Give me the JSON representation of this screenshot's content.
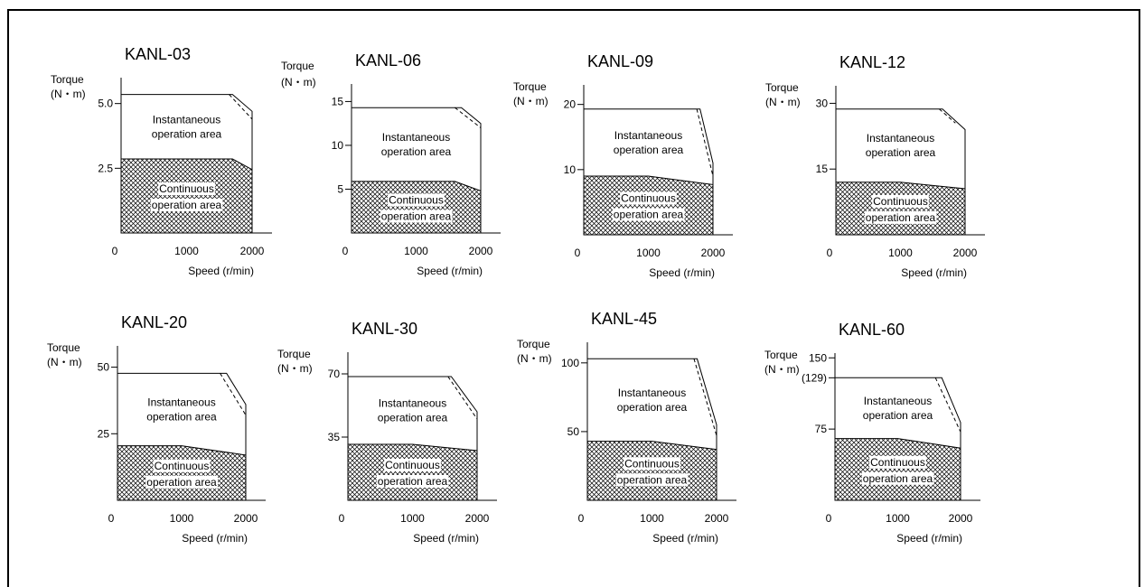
{
  "chart_data": [
    {
      "type": "area",
      "title": "KANL-03",
      "ylabel": "Torque",
      "yunit": "(N・m)",
      "xlabel": "Speed (r/min)",
      "x_ticks": [
        0,
        1000,
        2000
      ],
      "y_ticks": [
        {
          "v": 2.5,
          "label": "2.5"
        },
        {
          "v": 5.0,
          "label": "5.0"
        }
      ],
      "ylim": [
        0,
        6
      ],
      "xlim": [
        0,
        2000
      ],
      "instantaneous": {
        "label": "Instantaneous operation area",
        "boundary": [
          [
            0,
            5.35
          ],
          [
            1700,
            5.35
          ],
          [
            2000,
            4.7
          ],
          [
            2000,
            2.45
          ]
        ]
      },
      "instantaneous_dashed": [
        [
          1650,
          5.35
        ],
        [
          2000,
          4.4
        ]
      ],
      "continuous": {
        "label": "Continuous operation area",
        "boundary": [
          [
            0,
            2.86
          ],
          [
            1700,
            2.86
          ],
          [
            2000,
            2.45
          ],
          [
            2000,
            0
          ]
        ]
      }
    },
    {
      "type": "area",
      "title": "KANL-06",
      "ylabel": "Torque",
      "yunit": "(N・m)",
      "xlabel": "Speed (r/min)",
      "x_ticks": [
        0,
        1000,
        2000
      ],
      "y_ticks": [
        {
          "v": 5,
          "label": "5"
        },
        {
          "v": 10,
          "label": "10"
        },
        {
          "v": 15,
          "label": "15"
        }
      ],
      "ylim": [
        0,
        17
      ],
      "xlim": [
        0,
        2000
      ],
      "instantaneous": {
        "label": "Instantaneous operation area",
        "boundary": [
          [
            0,
            14.3
          ],
          [
            1700,
            14.3
          ],
          [
            2000,
            12.5
          ],
          [
            2000,
            4.8
          ]
        ]
      },
      "instantaneous_dashed": [
        [
          1600,
          14.3
        ],
        [
          2000,
          12.0
        ]
      ],
      "continuous": {
        "label": "Continuous operation area",
        "boundary": [
          [
            0,
            5.88
          ],
          [
            1600,
            5.88
          ],
          [
            2000,
            4.8
          ],
          [
            2000,
            0
          ]
        ]
      }
    },
    {
      "type": "area",
      "title": "KANL-09",
      "ylabel": "Torque",
      "yunit": "(N・m)",
      "xlabel": "Speed (r/min)",
      "x_ticks": [
        0,
        1000,
        2000
      ],
      "y_ticks": [
        {
          "v": 10,
          "label": "10"
        },
        {
          "v": 20,
          "label": "20"
        }
      ],
      "ylim": [
        0,
        23
      ],
      "xlim": [
        0,
        2000
      ],
      "instantaneous": {
        "label": "Instantaneous operation area",
        "boundary": [
          [
            0,
            19.3
          ],
          [
            1800,
            19.3
          ],
          [
            2000,
            11.0
          ],
          [
            2000,
            7.7
          ]
        ]
      },
      "instantaneous_dashed": [
        [
          1750,
          19.3
        ],
        [
          2000,
          9.0
        ]
      ],
      "continuous": {
        "label": "Continuous operation area",
        "boundary": [
          [
            0,
            9.0
          ],
          [
            1000,
            9.0
          ],
          [
            2000,
            7.7
          ],
          [
            2000,
            0
          ]
        ]
      }
    },
    {
      "type": "area",
      "title": "KANL-12",
      "ylabel": "Torque",
      "yunit": "(N・m)",
      "xlabel": "Speed (r/min)",
      "x_ticks": [
        0,
        1000,
        2000
      ],
      "y_ticks": [
        {
          "v": 15,
          "label": "15"
        },
        {
          "v": 30,
          "label": "30"
        }
      ],
      "ylim": [
        0,
        34
      ],
      "xlim": [
        0,
        2000
      ],
      "instantaneous": {
        "label": "Instantaneous operation area",
        "boundary": [
          [
            0,
            28.7
          ],
          [
            1650,
            28.7
          ],
          [
            2000,
            24.0
          ],
          [
            2000,
            10.5
          ]
        ]
      },
      "instantaneous_dashed": [
        [
          1600,
          28.7
        ],
        [
          1850,
          25.5
        ]
      ],
      "continuous": {
        "label": "Continuous operation area",
        "boundary": [
          [
            0,
            12.0
          ],
          [
            1000,
            12.0
          ],
          [
            2000,
            10.5
          ],
          [
            2000,
            0
          ]
        ]
      }
    },
    {
      "type": "area",
      "title": "KANL-20",
      "ylabel": "Torque",
      "yunit": "(N・m)",
      "xlabel": "Speed (r/min)",
      "x_ticks": [
        0,
        1000,
        2000
      ],
      "y_ticks": [
        {
          "v": 25,
          "label": "25"
        },
        {
          "v": 50,
          "label": "50"
        }
      ],
      "ylim": [
        0,
        58
      ],
      "xlim": [
        0,
        2000
      ],
      "instantaneous": {
        "label": "Instantaneous operation area",
        "boundary": [
          [
            0,
            47.7
          ],
          [
            1700,
            47.7
          ],
          [
            2000,
            36.0
          ],
          [
            2000,
            17.0
          ]
        ]
      },
      "instantaneous_dashed": [
        [
          1600,
          47.7
        ],
        [
          2000,
          32.0
        ]
      ],
      "continuous": {
        "label": "Continuous operation area",
        "boundary": [
          [
            0,
            20.5
          ],
          [
            1000,
            20.5
          ],
          [
            2000,
            17.0
          ],
          [
            2000,
            0
          ]
        ]
      }
    },
    {
      "type": "area",
      "title": "KANL-30",
      "ylabel": "Torque",
      "yunit": "(N・m)",
      "xlabel": "Speed (r/min)",
      "x_ticks": [
        0,
        1000,
        2000
      ],
      "y_ticks": [
        {
          "v": 35,
          "label": "35"
        },
        {
          "v": 70,
          "label": "70"
        }
      ],
      "ylim": [
        0,
        82
      ],
      "xlim": [
        0,
        2000
      ],
      "instantaneous": {
        "label": "Instantaneous operation area",
        "boundary": [
          [
            0,
            68.5
          ],
          [
            1600,
            68.5
          ],
          [
            2000,
            49.0
          ],
          [
            2000,
            27.5
          ]
        ]
      },
      "instantaneous_dashed": [
        [
          1550,
          68.5
        ],
        [
          2000,
          45.0
        ]
      ],
      "continuous": {
        "label": "Continuous operation area",
        "boundary": [
          [
            0,
            31.0
          ],
          [
            1000,
            31.0
          ],
          [
            2000,
            27.5
          ],
          [
            2000,
            0
          ]
        ]
      }
    },
    {
      "type": "area",
      "title": "KANL-45",
      "ylabel": "Torque",
      "yunit": "(N・m)",
      "xlabel": "Speed (r/min)",
      "x_ticks": [
        0,
        1000,
        2000
      ],
      "y_ticks": [
        {
          "v": 50,
          "label": "50"
        },
        {
          "v": 100,
          "label": "100"
        }
      ],
      "ylim": [
        0,
        115
      ],
      "xlim": [
        0,
        2000
      ],
      "instantaneous": {
        "label": "Instantaneous operation area",
        "boundary": [
          [
            0,
            103.0
          ],
          [
            1700,
            103.0
          ],
          [
            2000,
            55.0
          ],
          [
            2000,
            37.0
          ]
        ]
      },
      "instantaneous_dashed": [
        [
          1650,
          103.0
        ],
        [
          2000,
          47.0
        ]
      ],
      "continuous": {
        "label": "Continuous operation area",
        "boundary": [
          [
            0,
            43.0
          ],
          [
            1000,
            43.0
          ],
          [
            2000,
            37.0
          ],
          [
            2000,
            0
          ]
        ]
      }
    },
    {
      "type": "area",
      "title": "KANL-60",
      "ylabel": "Torque",
      "yunit": "(N・m)",
      "xlabel": "Speed (r/min)",
      "x_ticks": [
        0,
        1000,
        2000
      ],
      "y_ticks": [
        {
          "v": 75,
          "label": "75"
        },
        {
          "v": 129,
          "label": "(129)"
        },
        {
          "v": 150,
          "label": "150"
        }
      ],
      "ylim": [
        0,
        155
      ],
      "xlim": [
        0,
        2000
      ],
      "instantaneous": {
        "label": "Instantaneous operation area",
        "boundary": [
          [
            0,
            129.0
          ],
          [
            1700,
            129.0
          ],
          [
            2000,
            82.0
          ],
          [
            2000,
            55.0
          ]
        ]
      },
      "instantaneous_dashed": [
        [
          1600,
          129.0
        ],
        [
          2000,
          72.0
        ]
      ],
      "continuous": {
        "label": "Continuous operation area",
        "boundary": [
          [
            0,
            65.0
          ],
          [
            1000,
            65.0
          ],
          [
            2000,
            55.0
          ],
          [
            2000,
            0
          ]
        ]
      }
    }
  ]
}
